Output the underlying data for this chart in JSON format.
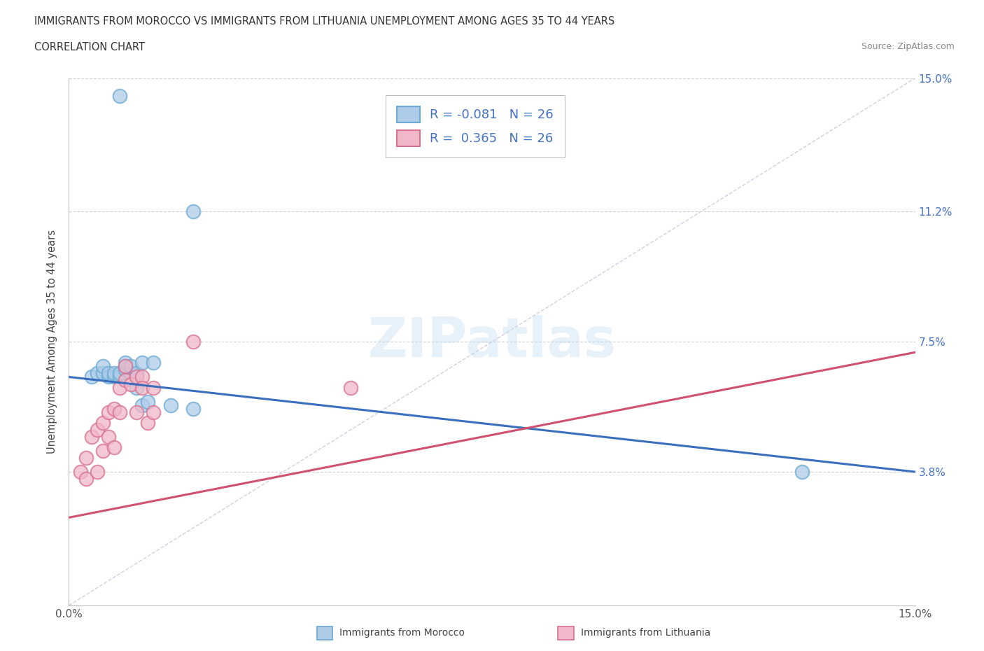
{
  "title": "IMMIGRANTS FROM MOROCCO VS IMMIGRANTS FROM LITHUANIA UNEMPLOYMENT AMONG AGES 35 TO 44 YEARS",
  "subtitle": "CORRELATION CHART",
  "source": "Source: ZipAtlas.com",
  "ylabel": "Unemployment Among Ages 35 to 44 years",
  "xlim": [
    0.0,
    0.15
  ],
  "ylim": [
    0.0,
    0.15
  ],
  "ytick_positions": [
    0.038,
    0.075,
    0.112,
    0.15
  ],
  "ytick_labels": [
    "3.8%",
    "7.5%",
    "11.2%",
    "15.0%"
  ],
  "xtick_positions": [
    0.0,
    0.01,
    0.02,
    0.03,
    0.04,
    0.05,
    0.06,
    0.07,
    0.08,
    0.09,
    0.1,
    0.11,
    0.12,
    0.13,
    0.14,
    0.15
  ],
  "morocco_color": "#aecce8",
  "morocco_edge": "#6aaad4",
  "lithuania_color": "#f0b8c8",
  "lithuania_edge": "#d87090",
  "trend_morocco_color": "#3a6fbe",
  "trend_lithuania_color": "#d05070",
  "ref_line_color": "#c8b8d8",
  "R_morocco": -0.081,
  "R_lithuania": 0.365,
  "N": 26,
  "morocco_x": [
    0.004,
    0.005,
    0.006,
    0.006,
    0.007,
    0.007,
    0.008,
    0.008,
    0.009,
    0.009,
    0.009,
    0.01,
    0.01,
    0.01,
    0.011,
    0.011,
    0.012,
    0.012,
    0.013,
    0.013,
    0.014,
    0.015,
    0.018,
    0.022,
    0.022,
    0.13
  ],
  "morocco_y": [
    0.065,
    0.066,
    0.066,
    0.068,
    0.065,
    0.066,
    0.065,
    0.066,
    0.065,
    0.145,
    0.066,
    0.067,
    0.068,
    0.069,
    0.066,
    0.068,
    0.062,
    0.066,
    0.057,
    0.069,
    0.058,
    0.069,
    0.057,
    0.056,
    0.112,
    0.038
  ],
  "lithuania_x": [
    0.002,
    0.003,
    0.003,
    0.004,
    0.005,
    0.005,
    0.006,
    0.006,
    0.007,
    0.007,
    0.008,
    0.008,
    0.009,
    0.009,
    0.01,
    0.01,
    0.011,
    0.012,
    0.012,
    0.013,
    0.013,
    0.014,
    0.015,
    0.015,
    0.022,
    0.05
  ],
  "lithuania_y": [
    0.038,
    0.042,
    0.036,
    0.048,
    0.05,
    0.038,
    0.052,
    0.044,
    0.055,
    0.048,
    0.056,
    0.045,
    0.062,
    0.055,
    0.064,
    0.068,
    0.063,
    0.065,
    0.055,
    0.065,
    0.062,
    0.052,
    0.062,
    0.055,
    0.075,
    0.062
  ],
  "trend_morocco_x0": 0.0,
  "trend_morocco_y0": 0.065,
  "trend_morocco_x1": 0.15,
  "trend_morocco_y1": 0.038,
  "trend_lithuania_x0": 0.0,
  "trend_lithuania_y0": 0.025,
  "trend_lithuania_x1": 0.15,
  "trend_lithuania_y1": 0.072
}
